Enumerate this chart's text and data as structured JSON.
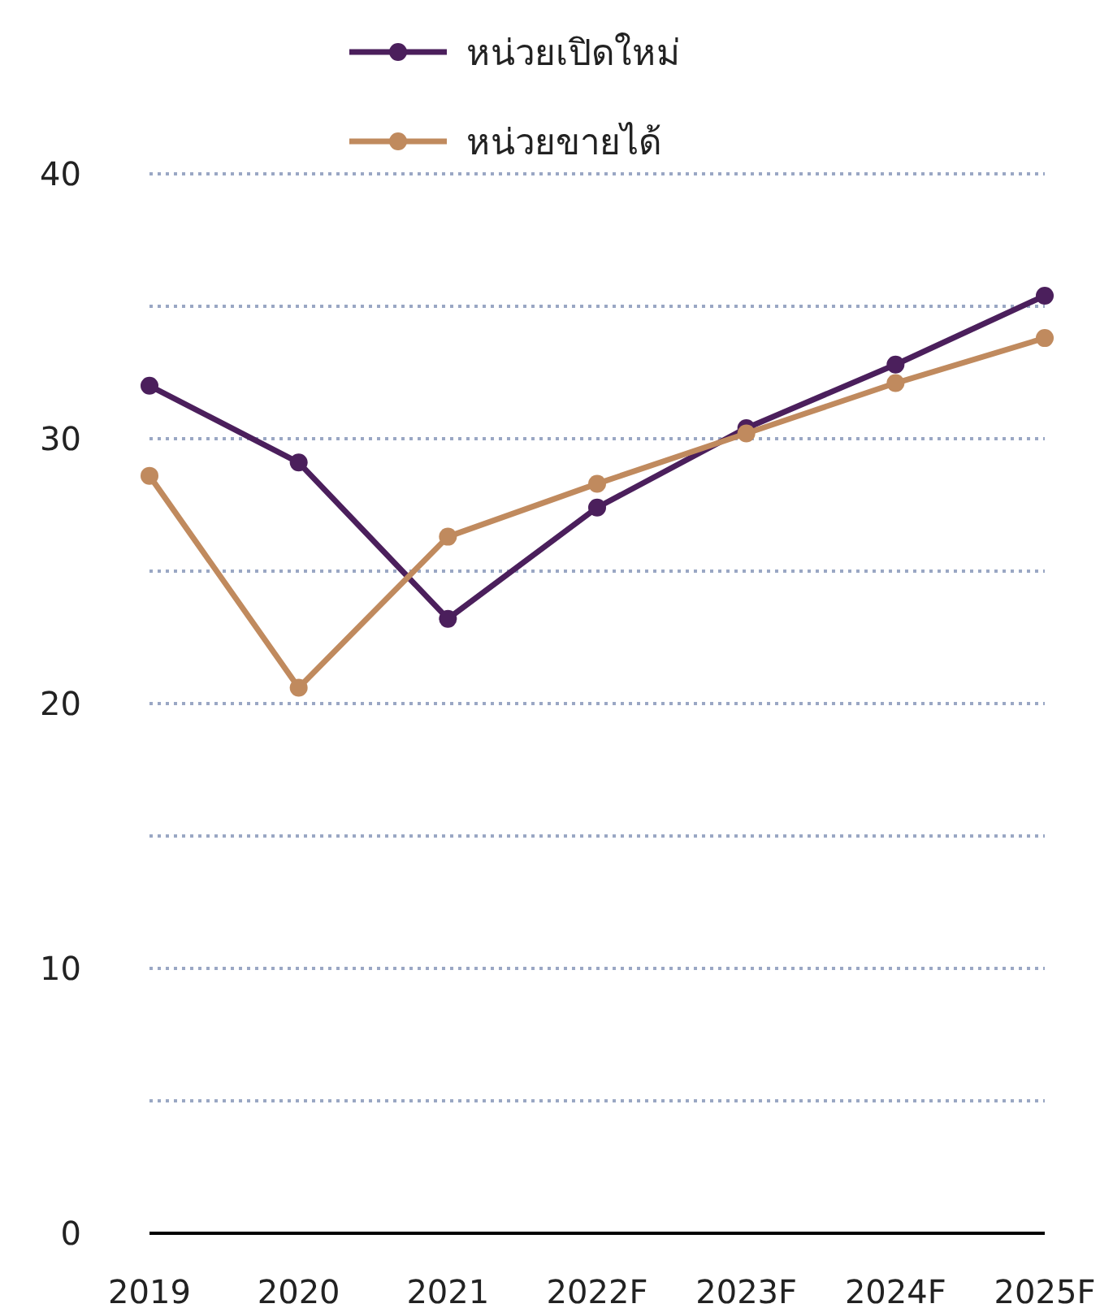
{
  "chart_data": {
    "type": "line",
    "categories": [
      "2019",
      "2020",
      "2021",
      "2022F",
      "2023F",
      "2024F",
      "2025F"
    ],
    "series": [
      {
        "name": "หน่วยเปิดใหม่",
        "color": "#4b1f5c",
        "values": [
          32.0,
          29.1,
          23.2,
          27.4,
          30.4,
          32.8,
          35.4
        ]
      },
      {
        "name": "หน่วยขายได้",
        "color": "#c08a5e",
        "values": [
          28.6,
          20.6,
          26.3,
          28.3,
          30.2,
          32.1,
          33.8
        ]
      }
    ],
    "ylim": [
      0,
      40
    ],
    "yticks": [
      0,
      {
        "value": 5,
        "label": null
      },
      10,
      {
        "value": 15,
        "label": null
      },
      20,
      {
        "value": 25,
        "label": null
      },
      30,
      {
        "value": 35,
        "label": null
      },
      40
    ],
    "grid": "y",
    "legend": "top",
    "marker": "circle",
    "line_style": "solid"
  }
}
